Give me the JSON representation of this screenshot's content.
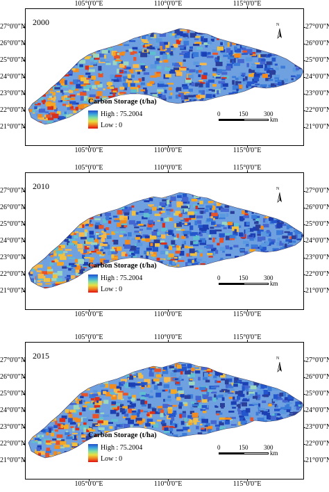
{
  "axes": {
    "lat_labels": [
      "27°0'0\"N",
      "26°0'0\"N",
      "25°0'0\"N",
      "24°0'0\"N",
      "23°0'0\"N",
      "22°0'0\"N",
      "21°0'0\"N"
    ],
    "lon_labels": [
      "105°0'0\"E",
      "110°0'0\"E",
      "115°0'0\"E"
    ]
  },
  "panels": [
    {
      "year": "2000",
      "dominance": 0.45
    },
    {
      "year": "2010",
      "dominance": 0.55
    },
    {
      "year": "2015",
      "dominance": 0.6
    }
  ],
  "legend": {
    "title": "Carbon Storage (t/ha)",
    "high_label": "High : 75.2004",
    "low_label": "Low : 0",
    "ramp_colors": [
      "#1f4ec8",
      "#3aa0e0",
      "#7fe0a0",
      "#e8e040",
      "#f08020",
      "#e01010"
    ]
  },
  "north_arrow": {
    "label": "N"
  },
  "scale_bar": {
    "ticks": [
      "0",
      "150",
      "300"
    ],
    "unit": "km"
  }
}
